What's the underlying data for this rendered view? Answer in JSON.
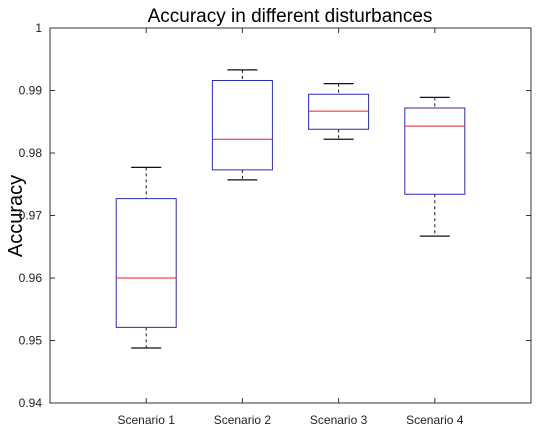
{
  "chart_data": {
    "type": "box",
    "title": "Accuracy in different disturbances",
    "xlabel": "",
    "ylabel": "Accuracy",
    "ylim": [
      0.94,
      1.0
    ],
    "yticks": [
      "0.94",
      "0.95",
      "0.96",
      "0.97",
      "0.98",
      "0.99",
      "1"
    ],
    "grid": false,
    "categories": [
      "Scenario 1",
      "Scenario 2",
      "Scenario 3",
      "Scenario 4"
    ],
    "boxes": [
      {
        "min": 0.9488,
        "q1": 0.9521,
        "median": 0.96,
        "q3": 0.9727,
        "max": 0.9777
      },
      {
        "min": 0.9757,
        "q1": 0.9773,
        "median": 0.9822,
        "q3": 0.9916,
        "max": 0.9933
      },
      {
        "min": 0.9822,
        "q1": 0.9838,
        "median": 0.9867,
        "q3": 0.9894,
        "max": 0.9911
      },
      {
        "min": 0.9667,
        "q1": 0.9734,
        "median": 0.9843,
        "q3": 0.9872,
        "max": 0.9889
      }
    ],
    "colors": {
      "box": "#2b2bb0",
      "median": "#e0202a",
      "whisker": "#111111",
      "axes": "#333333"
    }
  }
}
